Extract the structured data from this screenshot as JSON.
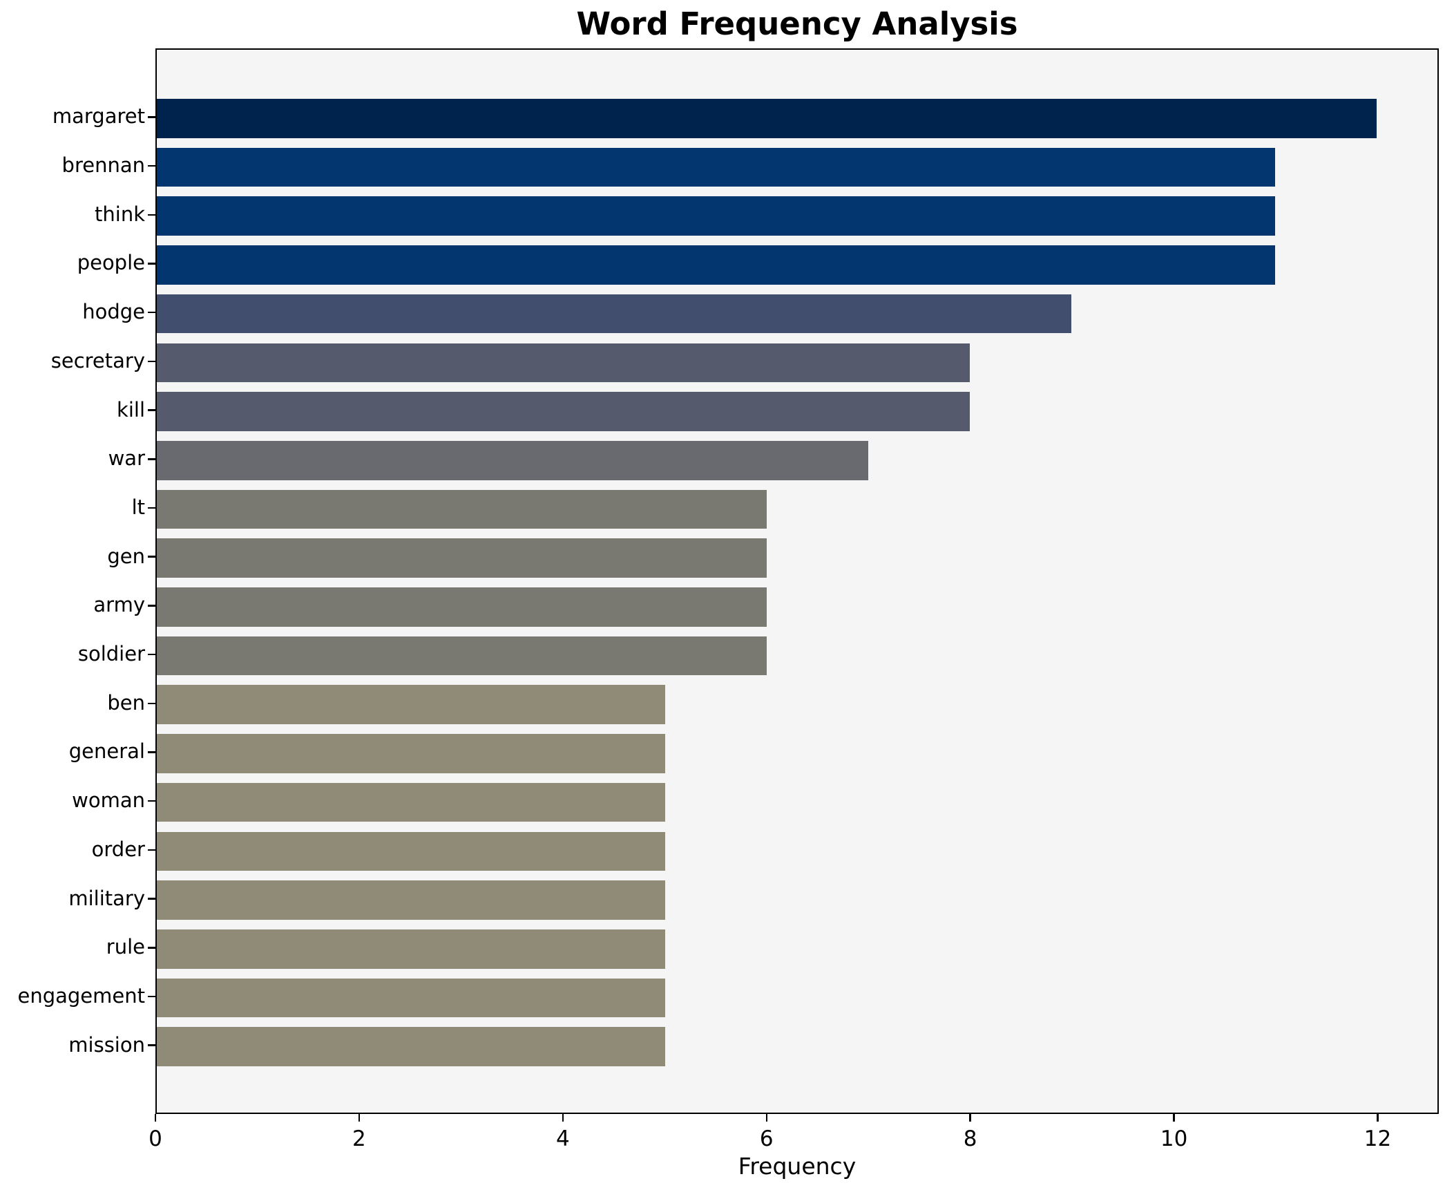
{
  "chart_data": {
    "type": "bar",
    "orientation": "horizontal",
    "title": "Word Frequency Analysis",
    "xlabel": "Frequency",
    "ylabel": "",
    "categories": [
      "margaret",
      "brennan",
      "think",
      "people",
      "hodge",
      "secretary",
      "kill",
      "war",
      "lt",
      "gen",
      "army",
      "soldier",
      "ben",
      "general",
      "woman",
      "order",
      "military",
      "rule",
      "engagement",
      "mission"
    ],
    "values": [
      12,
      11,
      11,
      11,
      9,
      8,
      8,
      7,
      6,
      6,
      6,
      6,
      5,
      5,
      5,
      5,
      5,
      5,
      5,
      5
    ],
    "bar_colors": [
      "#00234e",
      "#03366e",
      "#03366e",
      "#03366e",
      "#424e6e",
      "#555b6c",
      "#555b6c",
      "#686a70",
      "#7a7971",
      "#7a7971",
      "#7a7971",
      "#7a7971",
      "#908b77",
      "#908b77",
      "#908b77",
      "#908b77",
      "#908b77",
      "#908b77",
      "#908b77",
      "#908b77"
    ],
    "xlim": [
      0,
      12.6
    ],
    "xticks": [
      0,
      2,
      4,
      6,
      8,
      10,
      12
    ],
    "grid": "off",
    "legend": "none",
    "plot_background": "#f5f5f6",
    "figure_background": "#ffffff",
    "colormap": "cividis"
  }
}
